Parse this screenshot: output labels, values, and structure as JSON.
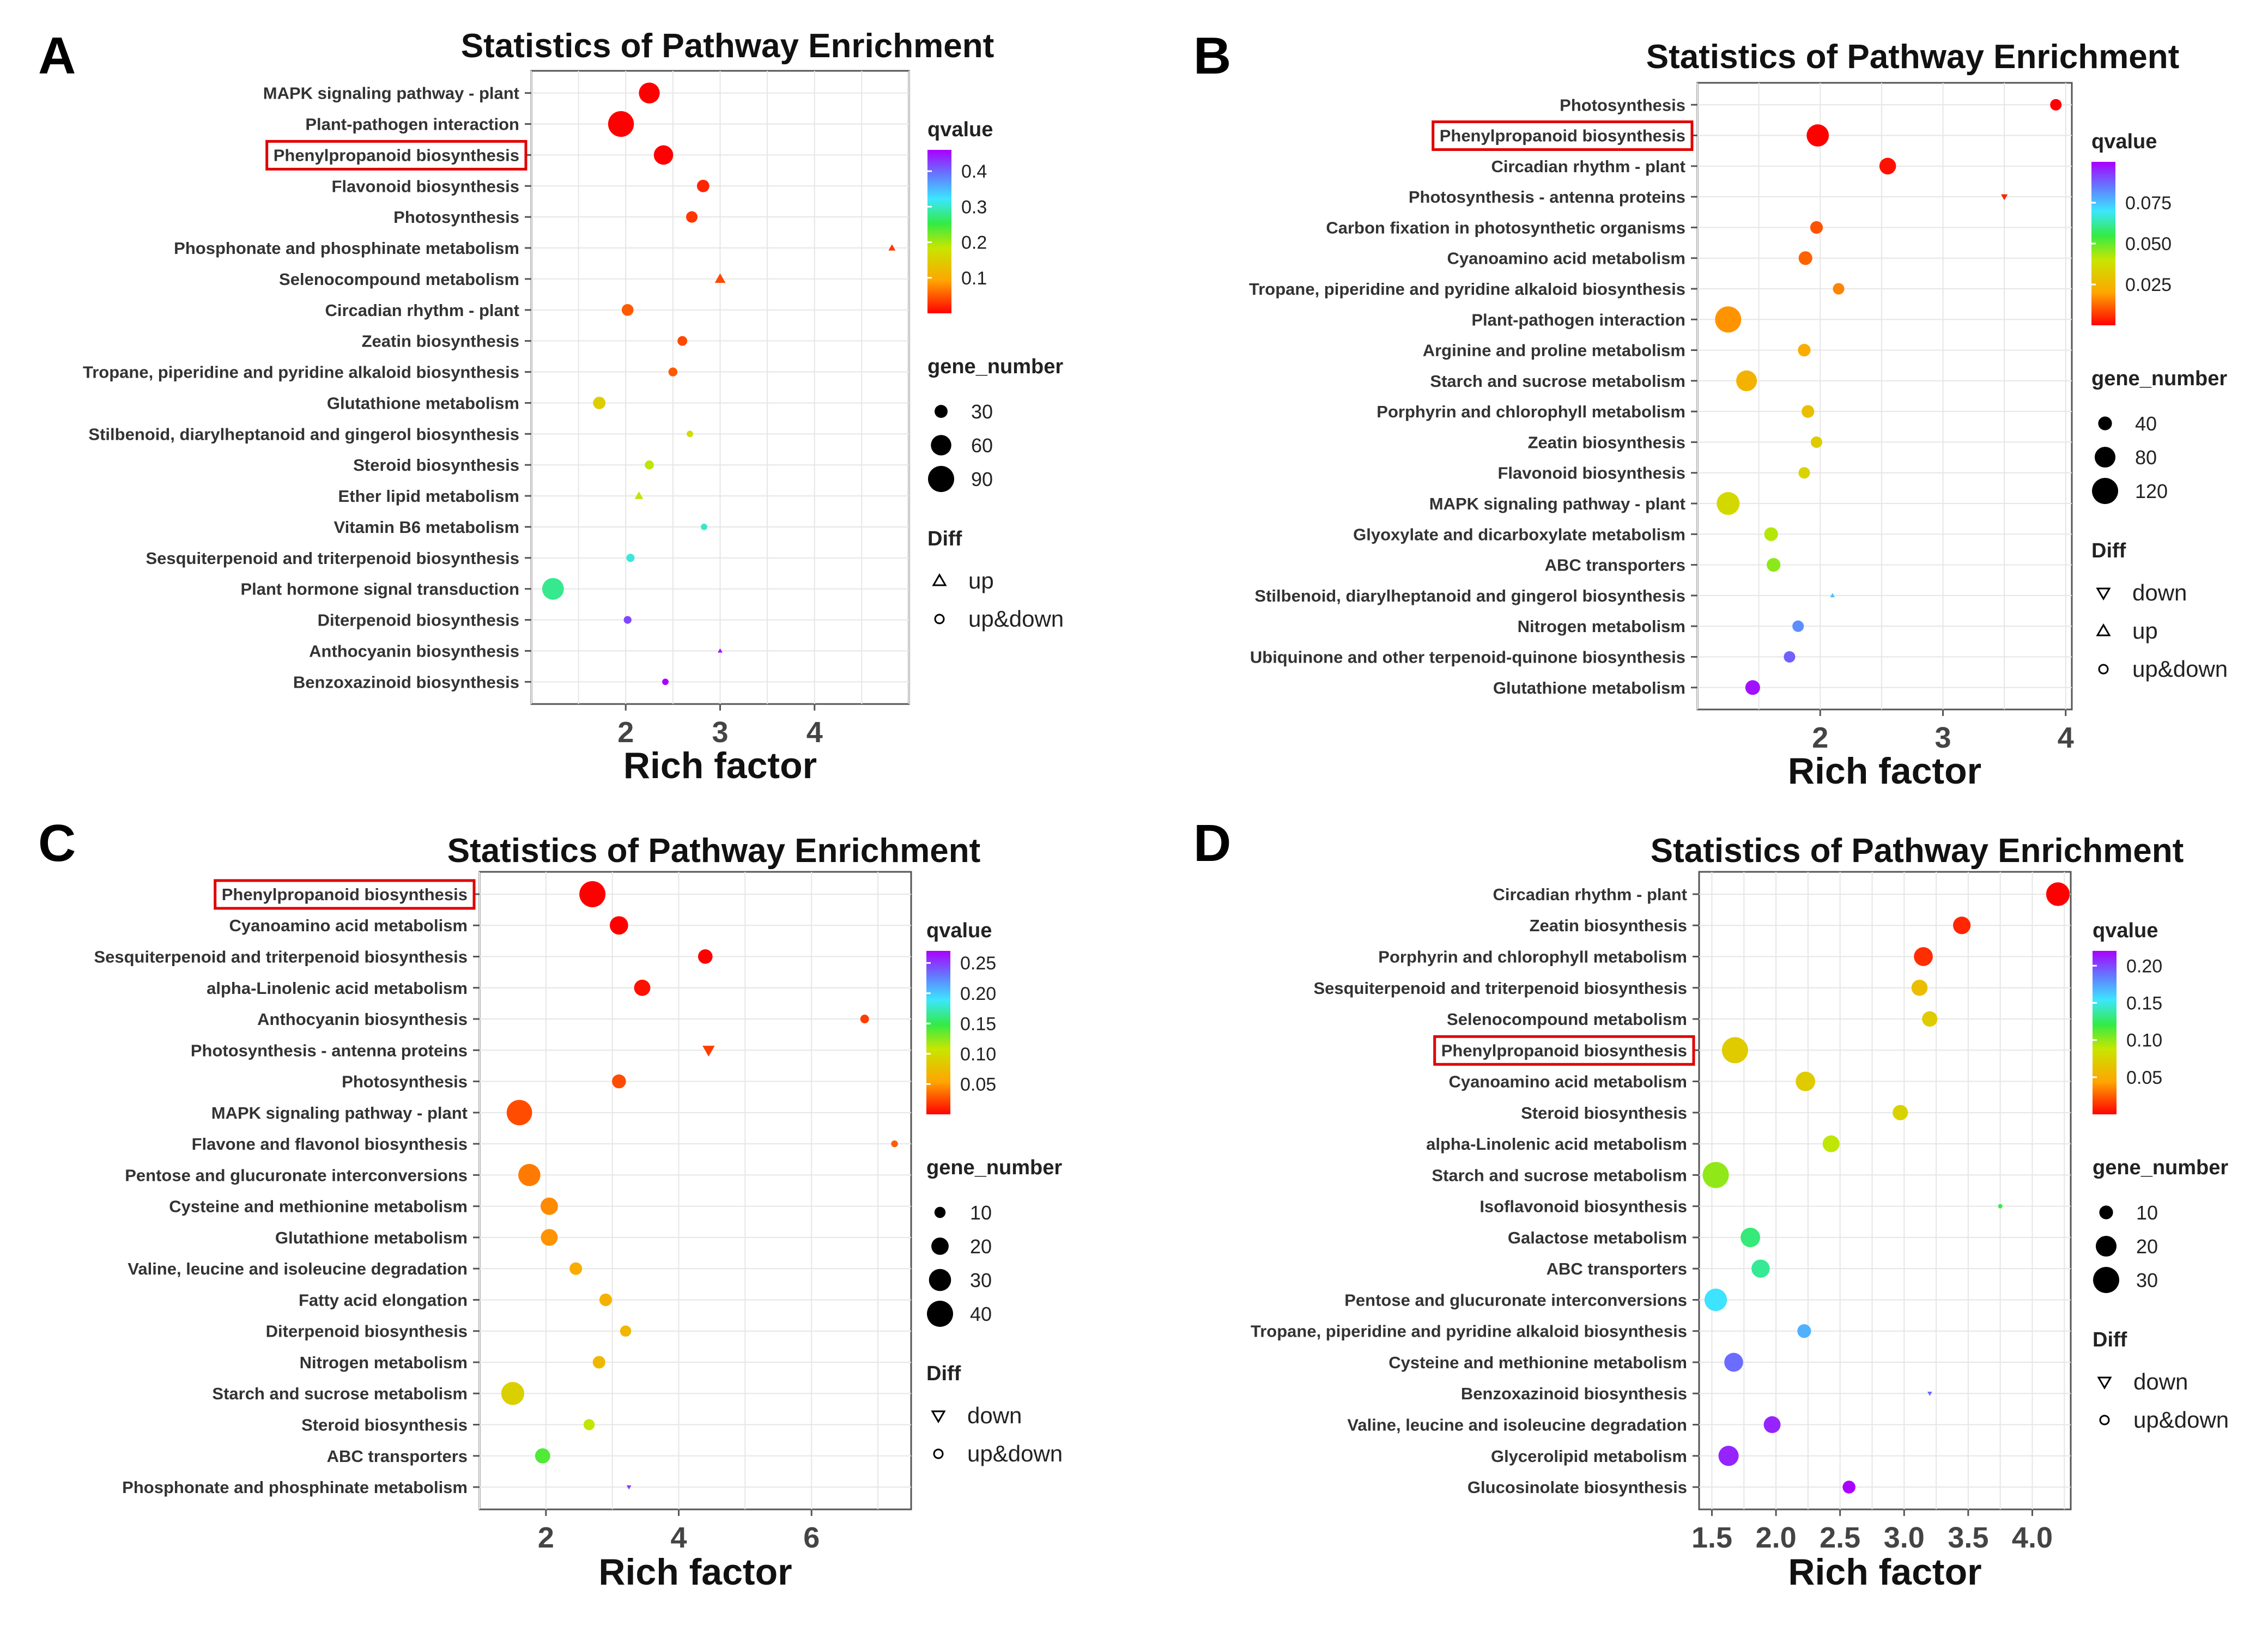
{
  "panels": [
    {
      "letter": "A",
      "highlight": "Phenylpropanoid biosynthesis",
      "chart_data": {
        "type": "scatter",
        "title": "Statistics of Pathway Enrichment",
        "xlabel": "Rich factor",
        "ylabel": "",
        "xlim": [
          1.0,
          5.0
        ],
        "xticks": [
          2,
          3,
          4
        ],
        "pathways": [
          "MAPK signaling pathway - plant",
          "Plant-pathogen interaction",
          "Phenylpropanoid biosynthesis",
          "Flavonoid biosynthesis",
          "Photosynthesis",
          "Phosphonate and phosphinate metabolism",
          "Selenocompound metabolism",
          "Circadian rhythm - plant",
          "Zeatin biosynthesis",
          "Tropane, piperidine and pyridine alkaloid biosynthesis",
          "Glutathione metabolism",
          "Stilbenoid, diarylheptanoid and gingerol biosynthesis",
          "Steroid biosynthesis",
          "Ether lipid metabolism",
          "Vitamin B6 metabolism",
          "Sesquiterpenoid and triterpenoid biosynthesis",
          "Plant hormone signal transduction",
          "Diterpenoid biosynthesis",
          "Anthocyanin biosynthesis",
          "Benzoxazinoid biosynthesis"
        ],
        "rich_factor": [
          2.25,
          1.95,
          2.4,
          2.82,
          2.7,
          4.82,
          3.0,
          2.02,
          2.6,
          2.5,
          1.72,
          2.68,
          2.25,
          2.14,
          2.83,
          2.05,
          1.23,
          2.02,
          3.0,
          2.42
        ],
        "qvalue": [
          0.0,
          0.0,
          0.0,
          0.02,
          0.03,
          0.03,
          0.04,
          0.05,
          0.04,
          0.05,
          0.15,
          0.17,
          0.19,
          0.19,
          0.3,
          0.31,
          0.28,
          0.42,
          0.45,
          0.46
        ],
        "gene_number": [
          62,
          88,
          55,
          28,
          25,
          12,
          20,
          26,
          20,
          18,
          28,
          12,
          18,
          15,
          12,
          16,
          66,
          15,
          8,
          12
        ],
        "diff": [
          "up&down",
          "up&down",
          "up&down",
          "up&down",
          "up&down",
          "up",
          "up",
          "up&down",
          "up&down",
          "up&down",
          "up&down",
          "up&down",
          "up&down",
          "up",
          "up&down",
          "up&down",
          "up&down",
          "up&down",
          "up",
          "up&down"
        ],
        "legend": {
          "qvalue_title": "qvalue",
          "qvalue_range": [
            0.0,
            0.46
          ],
          "qvalue_ticks": [
            "0.1",
            "0.2",
            "0.3",
            "0.4"
          ],
          "qvalue_tick_values": [
            0.1,
            0.2,
            0.3,
            0.4
          ],
          "size_title": "gene_number",
          "size_labels": [
            "30",
            "60",
            "90"
          ],
          "size_values": [
            30,
            60,
            90
          ],
          "size_range": [
            8,
            90
          ],
          "diff_title": "Diff",
          "diff_labels": [
            "up",
            "up&down"
          ]
        }
      }
    },
    {
      "letter": "B",
      "highlight": "Phenylpropanoid biosynthesis",
      "chart_data": {
        "type": "scatter",
        "title": "Statistics of Pathway Enrichment",
        "xlabel": "Rich factor",
        "ylabel": "",
        "xlim": [
          1.0,
          4.05
        ],
        "xticks": [
          2,
          3,
          4
        ],
        "pathways": [
          "Photosynthesis",
          "Phenylpropanoid biosynthesis",
          "Circadian rhythm - plant",
          "Photosynthesis - antenna proteins",
          "Carbon fixation in photosynthetic organisms",
          "Cyanoamino acid metabolism",
          "Tropane, piperidine and pyridine alkaloid biosynthesis",
          "Plant-pathogen interaction",
          "Arginine and proline metabolism",
          "Starch and sucrose metabolism",
          "Porphyrin and chlorophyll metabolism",
          "Zeatin biosynthesis",
          "Flavonoid biosynthesis",
          "MAPK signaling pathway - plant",
          "Glyoxylate and dicarboxylate metabolism",
          "ABC transporters",
          "Stilbenoid, diarylheptanoid and gingerol biosynthesis",
          "Nitrogen metabolism",
          "Ubiquinone and other terpenoid-quinone biosynthesis",
          "Glutathione metabolism"
        ],
        "rich_factor": [
          3.92,
          1.98,
          2.55,
          3.5,
          1.97,
          1.88,
          2.15,
          1.25,
          1.87,
          1.4,
          1.9,
          1.97,
          1.87,
          1.25,
          1.6,
          1.62,
          2.1,
          1.82,
          1.75,
          1.45
        ],
        "qvalue": [
          0.0,
          0.0,
          0.002,
          0.004,
          0.01,
          0.012,
          0.016,
          0.018,
          0.022,
          0.024,
          0.028,
          0.032,
          0.034,
          0.036,
          0.042,
          0.046,
          0.075,
          0.082,
          0.088,
          0.098
        ],
        "gene_number": [
          30,
          90,
          55,
          12,
          35,
          40,
          30,
          120,
          35,
          80,
          35,
          30,
          30,
          95,
          40,
          40,
          8,
          30,
          30,
          45
        ],
        "diff": [
          "up&down",
          "up&down",
          "up&down",
          "down",
          "up&down",
          "up&down",
          "up&down",
          "up&down",
          "up&down",
          "up&down",
          "up&down",
          "up&down",
          "up&down",
          "up&down",
          "up&down",
          "up&down",
          "up",
          "up&down",
          "up&down",
          "up&down"
        ],
        "legend": {
          "qvalue_title": "qvalue",
          "qvalue_range": [
            0.0,
            0.1
          ],
          "qvalue_ticks": [
            "0.025",
            "0.050",
            "0.075"
          ],
          "qvalue_tick_values": [
            0.025,
            0.05,
            0.075
          ],
          "size_title": "gene_number",
          "size_labels": [
            "40",
            "80",
            "120"
          ],
          "size_values": [
            40,
            80,
            120
          ],
          "size_range": [
            8,
            120
          ],
          "diff_title": "Diff",
          "diff_labels": [
            "down",
            "up",
            "up&down"
          ]
        }
      }
    },
    {
      "letter": "C",
      "highlight": "Phenylpropanoid biosynthesis",
      "chart_data": {
        "type": "scatter",
        "title": "Statistics of Pathway Enrichment",
        "xlabel": "Rich factor",
        "ylabel": "",
        "xlim": [
          1.0,
          7.5
        ],
        "xticks": [
          2,
          4,
          6
        ],
        "pathways": [
          "Phenylpropanoid biosynthesis",
          "Cyanoamino acid metabolism",
          "Sesquiterpenoid and triterpenoid biosynthesis",
          "alpha-Linolenic acid metabolism",
          "Anthocyanin biosynthesis",
          "Photosynthesis - antenna proteins",
          "Photosynthesis",
          "MAPK signaling pathway - plant",
          "Flavone and flavonol biosynthesis",
          "Pentose and glucuronate interconversions",
          "Cysteine and methionine metabolism",
          "Glutathione metabolism",
          "Valine, leucine and isoleucine degradation",
          "Fatty acid elongation",
          "Diterpenoid biosynthesis",
          "Nitrogen metabolism",
          "Starch and sucrose metabolism",
          "Steroid biosynthesis",
          "ABC transporters",
          "Phosphonate and phosphinate metabolism"
        ],
        "rich_factor": [
          2.7,
          3.1,
          4.4,
          3.45,
          6.8,
          4.45,
          3.1,
          1.6,
          7.25,
          1.75,
          2.05,
          2.05,
          2.45,
          2.9,
          3.2,
          2.8,
          1.5,
          2.65,
          1.95,
          3.25
        ],
        "qvalue": [
          0.0,
          0.0,
          0.0,
          0.005,
          0.02,
          0.02,
          0.025,
          0.025,
          0.03,
          0.04,
          0.045,
          0.048,
          0.06,
          0.065,
          0.068,
          0.07,
          0.09,
          0.11,
          0.14,
          0.25
        ],
        "gene_number": [
          40,
          22,
          15,
          18,
          7,
          10,
          14,
          38,
          5,
          30,
          20,
          19,
          12,
          12,
          10,
          12,
          32,
          10,
          16,
          3
        ],
        "diff": [
          "up&down",
          "up&down",
          "up&down",
          "up&down",
          "up&down",
          "down",
          "up&down",
          "up&down",
          "up&down",
          "up&down",
          "up&down",
          "up&down",
          "up&down",
          "up&down",
          "up&down",
          "up&down",
          "up&down",
          "up&down",
          "up&down",
          "down"
        ],
        "legend": {
          "qvalue_title": "qvalue",
          "qvalue_range": [
            0.0,
            0.27
          ],
          "qvalue_ticks": [
            "0.05",
            "0.10",
            "0.15",
            "0.20",
            "0.25"
          ],
          "qvalue_tick_values": [
            0.05,
            0.1,
            0.15,
            0.2,
            0.25
          ],
          "size_title": "gene_number",
          "size_labels": [
            "10",
            "20",
            "30",
            "40"
          ],
          "size_values": [
            10,
            20,
            30,
            40
          ],
          "size_range": [
            3,
            40
          ],
          "diff_title": "Diff",
          "diff_labels": [
            "down",
            "up&down"
          ]
        }
      }
    },
    {
      "letter": "D",
      "highlight": "Phenylpropanoid biosynthesis",
      "chart_data": {
        "type": "scatter",
        "title": "Statistics of Pathway Enrichment",
        "xlabel": "Rich factor",
        "ylabel": "",
        "xlim": [
          1.4,
          4.3
        ],
        "xticks": [
          1.5,
          2.0,
          2.5,
          3.0,
          3.5,
          4.0
        ],
        "xtick_labels": [
          "1.5",
          "2.0",
          "2.5",
          "3.0",
          "3.5",
          "4.0"
        ],
        "pathways": [
          "Circadian rhythm - plant",
          "Zeatin biosynthesis",
          "Porphyrin and chlorophyll metabolism",
          "Sesquiterpenoid and triterpenoid biosynthesis",
          "Selenocompound metabolism",
          "Phenylpropanoid biosynthesis",
          "Cyanoamino acid metabolism",
          "Steroid biosynthesis",
          "alpha-Linolenic acid metabolism",
          "Starch and sucrose metabolism",
          "Isoflavonoid biosynthesis",
          "Galactose metabolism",
          "ABC transporters",
          "Pentose and glucuronate interconversions",
          "Tropane, piperidine and pyridine alkaloid biosynthesis",
          "Cysteine and methionine metabolism",
          "Benzoxazinoid biosynthesis",
          "Valine, leucine and isoleucine degradation",
          "Glycerolipid metabolism",
          "Glucosinolate biosynthesis"
        ],
        "rich_factor": [
          4.2,
          3.45,
          3.15,
          3.12,
          3.2,
          1.68,
          2.23,
          2.97,
          2.43,
          1.53,
          3.75,
          1.8,
          1.88,
          1.53,
          2.22,
          1.67,
          3.2,
          1.97,
          1.63,
          2.57
        ],
        "qvalue": [
          0.0,
          0.01,
          0.012,
          0.06,
          0.07,
          0.07,
          0.07,
          0.075,
          0.09,
          0.1,
          0.12,
          0.13,
          0.135,
          0.155,
          0.17,
          0.19,
          0.19,
          0.21,
          0.21,
          0.22
        ],
        "gene_number": [
          25,
          15,
          17,
          13,
          12,
          30,
          18,
          12,
          14,
          30,
          2,
          18,
          16,
          23,
          10,
          17,
          2,
          14,
          19,
          9
        ],
        "diff": [
          "up&down",
          "up&down",
          "up&down",
          "up&down",
          "up&down",
          "up&down",
          "up&down",
          "up&down",
          "up&down",
          "up&down",
          "up&down",
          "up&down",
          "up&down",
          "up&down",
          "up&down",
          "up&down",
          "down",
          "up&down",
          "up&down",
          "up&down"
        ],
        "legend": {
          "qvalue_title": "qvalue",
          "qvalue_range": [
            0.0,
            0.22
          ],
          "qvalue_ticks": [
            "0.05",
            "0.10",
            "0.15",
            "0.20"
          ],
          "qvalue_tick_values": [
            0.05,
            0.1,
            0.15,
            0.2
          ],
          "size_title": "gene_number",
          "size_labels": [
            "10",
            "20",
            "30"
          ],
          "size_values": [
            10,
            20,
            30
          ],
          "size_range": [
            2,
            30
          ],
          "diff_title": "Diff",
          "diff_labels": [
            "down",
            "up&down"
          ]
        }
      }
    }
  ]
}
